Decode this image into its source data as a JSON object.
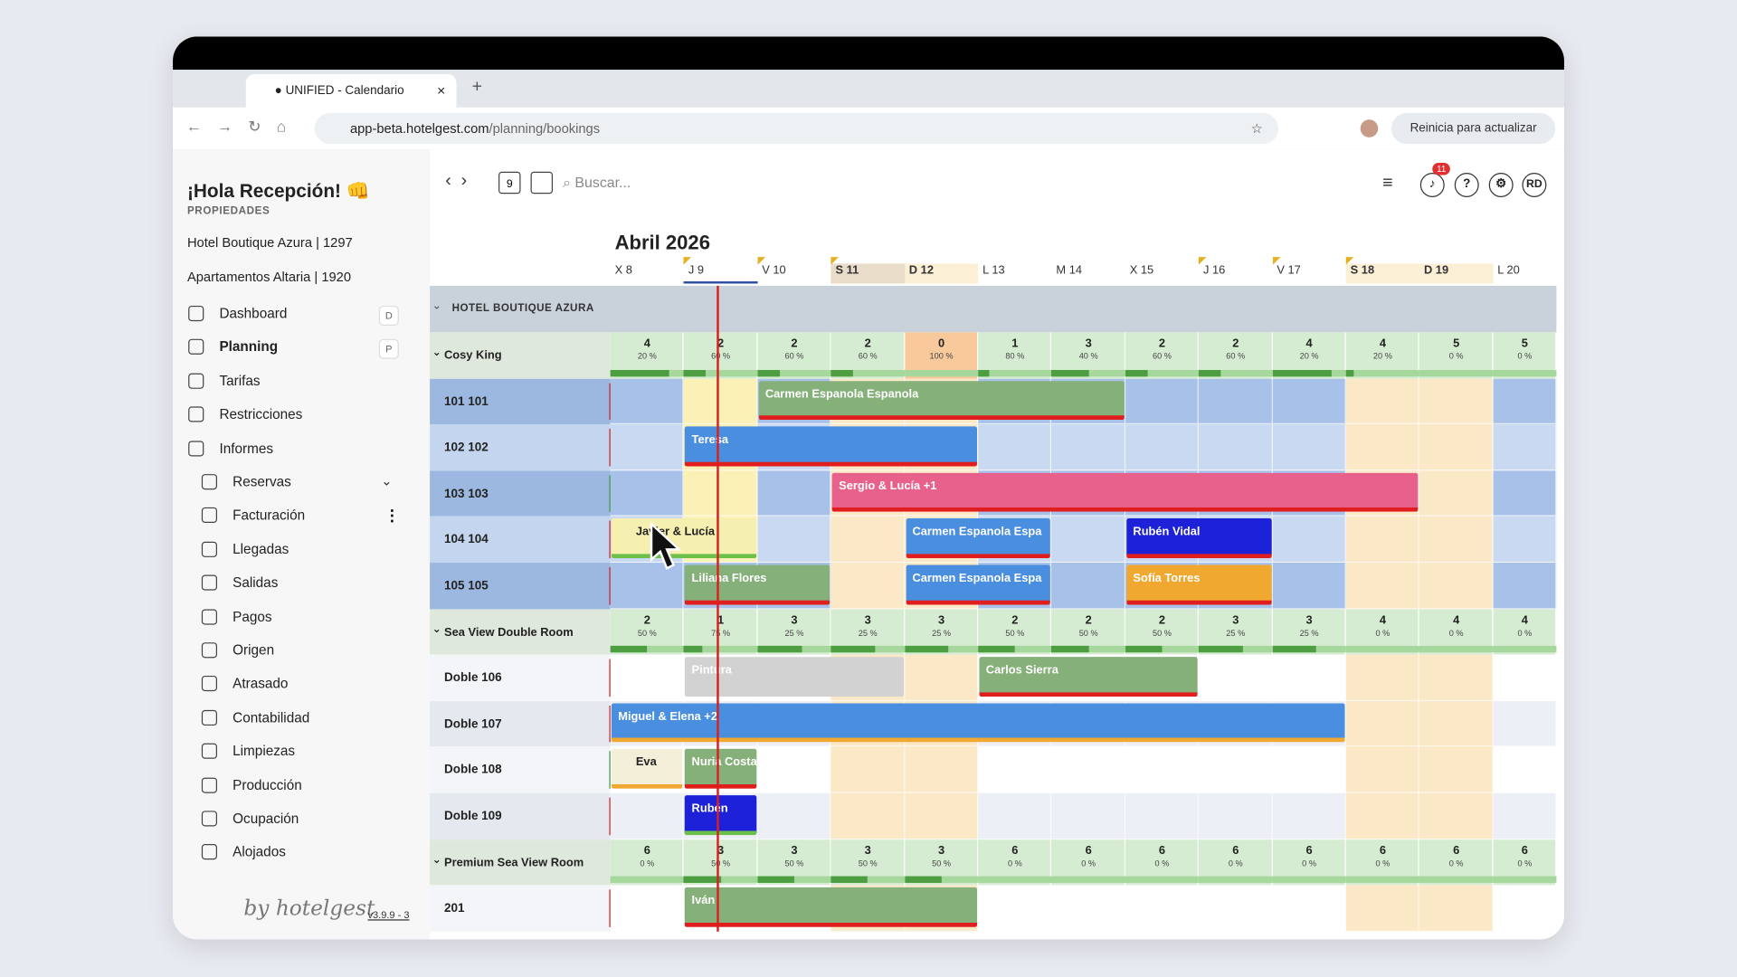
{
  "browser": {
    "tab_title": "UNIFIED - Calendario",
    "url_host": "app-beta.hotelgest.com",
    "url_path": "/planning/bookings",
    "update_button": "Reinicia para actualizar"
  },
  "sidebar": {
    "greeting": "¡Hola Recepción! 👊",
    "properties_label": "PROPIEDADES",
    "properties": [
      "Hotel Boutique Azura | 1297",
      "Apartamentos Altaria | 1920"
    ],
    "nav": [
      {
        "label": "Dashboard",
        "shortcut": "D"
      },
      {
        "label": "Planning",
        "shortcut": "P"
      },
      {
        "label": "Tarifas"
      },
      {
        "label": "Restricciones"
      },
      {
        "label": "Informes"
      }
    ],
    "reports": [
      "Reservas",
      "Facturación",
      "Llegadas",
      "Salidas",
      "Pagos",
      "Origen",
      "Atrasado",
      "Contabilidad",
      "Limpiezas",
      "Producción",
      "Ocupación",
      "Alojados"
    ],
    "footer": {
      "brand": "by hotelgest",
      "version": "v3.9.9 - 3"
    }
  },
  "toolbar": {
    "day_icon": "9",
    "search_placeholder": "Buscar...",
    "notifications": "11",
    "help": "?",
    "avatar": "RD"
  },
  "calendar": {
    "month": "Abril 2026",
    "days": [
      "X 8",
      "J 9",
      "V 10",
      "S 11",
      "D 12",
      "L 13",
      "M 14",
      "X 15",
      "J 16",
      "V 17",
      "S 18",
      "D 19",
      "L 20"
    ],
    "property": "HOTEL BOUTIQUE AZURA",
    "room_types": [
      {
        "name": "Cosy King",
        "availability": [
          {
            "count": "4",
            "occupancy": "20 %"
          },
          {
            "count": "2",
            "occupancy": "60 %"
          },
          {
            "count": "2",
            "occupancy": "60 %"
          },
          {
            "count": "2",
            "occupancy": "60 %"
          },
          {
            "count": "0",
            "occupancy": "100 %"
          },
          {
            "count": "1",
            "occupancy": "80 %"
          },
          {
            "count": "3",
            "occupancy": "40 %"
          },
          {
            "count": "2",
            "occupancy": "60 %"
          },
          {
            "count": "2",
            "occupancy": "60 %"
          },
          {
            "count": "4",
            "occupancy": "20 %"
          },
          {
            "count": "4",
            "occupancy": "20 %"
          },
          {
            "count": "5",
            "occupancy": "0 %"
          },
          {
            "count": "5",
            "occupancy": "0 %"
          }
        ],
        "rooms": [
          {
            "name": "101 101",
            "bookings": [
              {
                "guest": "Carmen Espanola Espanola"
              }
            ]
          },
          {
            "name": "102 102",
            "bookings": [
              {
                "guest": "Teresa"
              }
            ]
          },
          {
            "name": "103 103",
            "bookings": [
              {
                "guest": "Sergio & Lucía +1"
              }
            ]
          },
          {
            "name": "104 104",
            "bookings": [
              {
                "guest": "Javier & Lucía"
              },
              {
                "guest": "Carmen Espanola Espa"
              },
              {
                "guest": "Rubén Vidal"
              }
            ]
          },
          {
            "name": "105 105",
            "bookings": [
              {
                "guest": "Liliana Flores"
              },
              {
                "guest": "Carmen Espanola Espa"
              },
              {
                "guest": "Sofía Torres"
              }
            ]
          }
        ]
      },
      {
        "name": "Sea View Double Room",
        "availability": [
          {
            "count": "2",
            "occupancy": "50 %"
          },
          {
            "count": "1",
            "occupancy": "75 %"
          },
          {
            "count": "3",
            "occupancy": "25 %"
          },
          {
            "count": "3",
            "occupancy": "25 %"
          },
          {
            "count": "3",
            "occupancy": "25 %"
          },
          {
            "count": "2",
            "occupancy": "50 %"
          },
          {
            "count": "2",
            "occupancy": "50 %"
          },
          {
            "count": "2",
            "occupancy": "50 %"
          },
          {
            "count": "3",
            "occupancy": "25 %"
          },
          {
            "count": "3",
            "occupancy": "25 %"
          },
          {
            "count": "4",
            "occupancy": "0 %"
          },
          {
            "count": "4",
            "occupancy": "0 %"
          },
          {
            "count": "4",
            "occupancy": "0 %"
          }
        ],
        "rooms": [
          {
            "name": "Doble 106",
            "bookings": [
              {
                "guest": "Pintura"
              },
              {
                "guest": "Carlos Sierra"
              }
            ]
          },
          {
            "name": "Doble 107",
            "bookings": [
              {
                "guest": "Miguel & Elena +2"
              }
            ]
          },
          {
            "name": "Doble 108",
            "bookings": [
              {
                "guest": "Eva"
              },
              {
                "guest": "Nuria Costa"
              }
            ]
          },
          {
            "name": "Doble 109",
            "bookings": [
              {
                "guest": "Rubén"
              }
            ]
          }
        ]
      },
      {
        "name": "Premium Sea View Room",
        "availability": [
          {
            "count": "6",
            "occupancy": "0 %"
          },
          {
            "count": "3",
            "occupancy": "50 %"
          },
          {
            "count": "3",
            "occupancy": "50 %"
          },
          {
            "count": "3",
            "occupancy": "50 %"
          },
          {
            "count": "3",
            "occupancy": "50 %"
          },
          {
            "count": "6",
            "occupancy": "0 %"
          },
          {
            "count": "6",
            "occupancy": "0 %"
          },
          {
            "count": "6",
            "occupancy": "0 %"
          },
          {
            "count": "6",
            "occupancy": "0 %"
          },
          {
            "count": "6",
            "occupancy": "0 %"
          },
          {
            "count": "6",
            "occupancy": "0 %"
          },
          {
            "count": "6",
            "occupancy": "0 %"
          },
          {
            "count": "6",
            "occupancy": "0 %"
          }
        ],
        "rooms": [
          {
            "name": "201",
            "bookings": [
              {
                "guest": "Iván"
              }
            ]
          }
        ]
      }
    ]
  }
}
